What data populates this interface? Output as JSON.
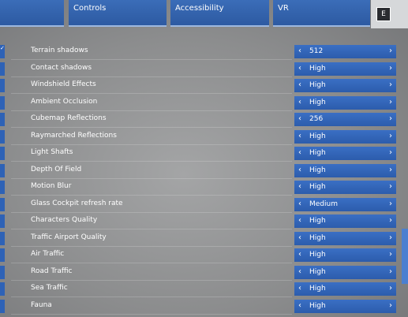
{
  "tabs": [
    "ces",
    "Controls",
    "Accessibility",
    "VR"
  ],
  "key": "E",
  "settings": [
    {
      "label": "Terrain shadows",
      "value": "512"
    },
    {
      "label": "Contact shadows",
      "value": "High"
    },
    {
      "label": "Windshield Effects",
      "value": "High"
    },
    {
      "label": "Ambient Occlusion",
      "value": "High"
    },
    {
      "label": "Cubemap Reflections",
      "value": "256"
    },
    {
      "label": "Raymarched Reflections",
      "value": "High"
    },
    {
      "label": "Light Shafts",
      "value": "High"
    },
    {
      "label": "Depth Of Field",
      "value": "High"
    },
    {
      "label": "Motion Blur",
      "value": "High"
    },
    {
      "label": "Glass Cockpit refresh rate",
      "value": "Medium"
    },
    {
      "label": "Characters Quality",
      "value": "High"
    },
    {
      "label": "Traffic Airport Quality",
      "value": "High"
    },
    {
      "label": "Air Traffic",
      "value": "High"
    },
    {
      "label": "Road Traffic",
      "value": "High"
    },
    {
      "label": "Sea Traffic",
      "value": "High"
    },
    {
      "label": "Fauna",
      "value": "High"
    }
  ]
}
